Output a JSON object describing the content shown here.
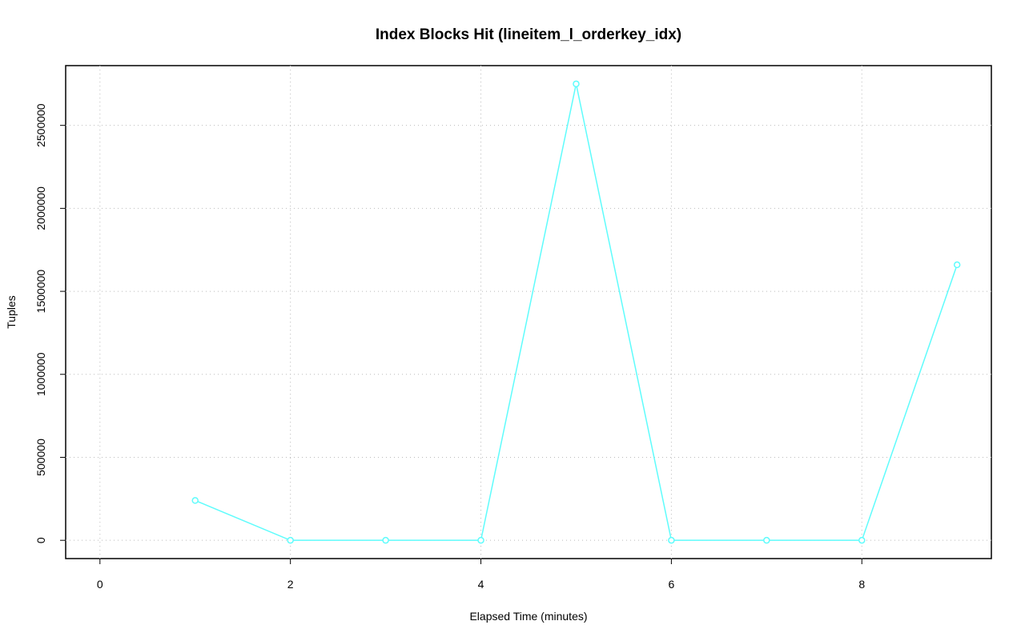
{
  "chart_data": {
    "type": "line",
    "title": "Index Blocks Hit (lineitem_l_orderkey_idx)",
    "x_label": "Elapsed Time (minutes)",
    "y_label": "Tuples",
    "x": [
      1,
      2,
      3,
      4,
      5,
      6,
      7,
      8,
      9
    ],
    "series": [
      {
        "name": "lineitem_l_orderkey_idx",
        "color": "#5ffcfc",
        "values": [
          240000,
          0,
          0,
          0,
          2750000,
          0,
          0,
          0,
          1660000
        ]
      }
    ],
    "xlim": [
      -0.36,
      9.36
    ],
    "ylim": [
      -110000,
      2860000
    ],
    "xticks": [
      0,
      2,
      4,
      6,
      8
    ],
    "yticks": [
      0,
      500000,
      1000000,
      1500000,
      2000000,
      2500000
    ],
    "grid": true
  }
}
